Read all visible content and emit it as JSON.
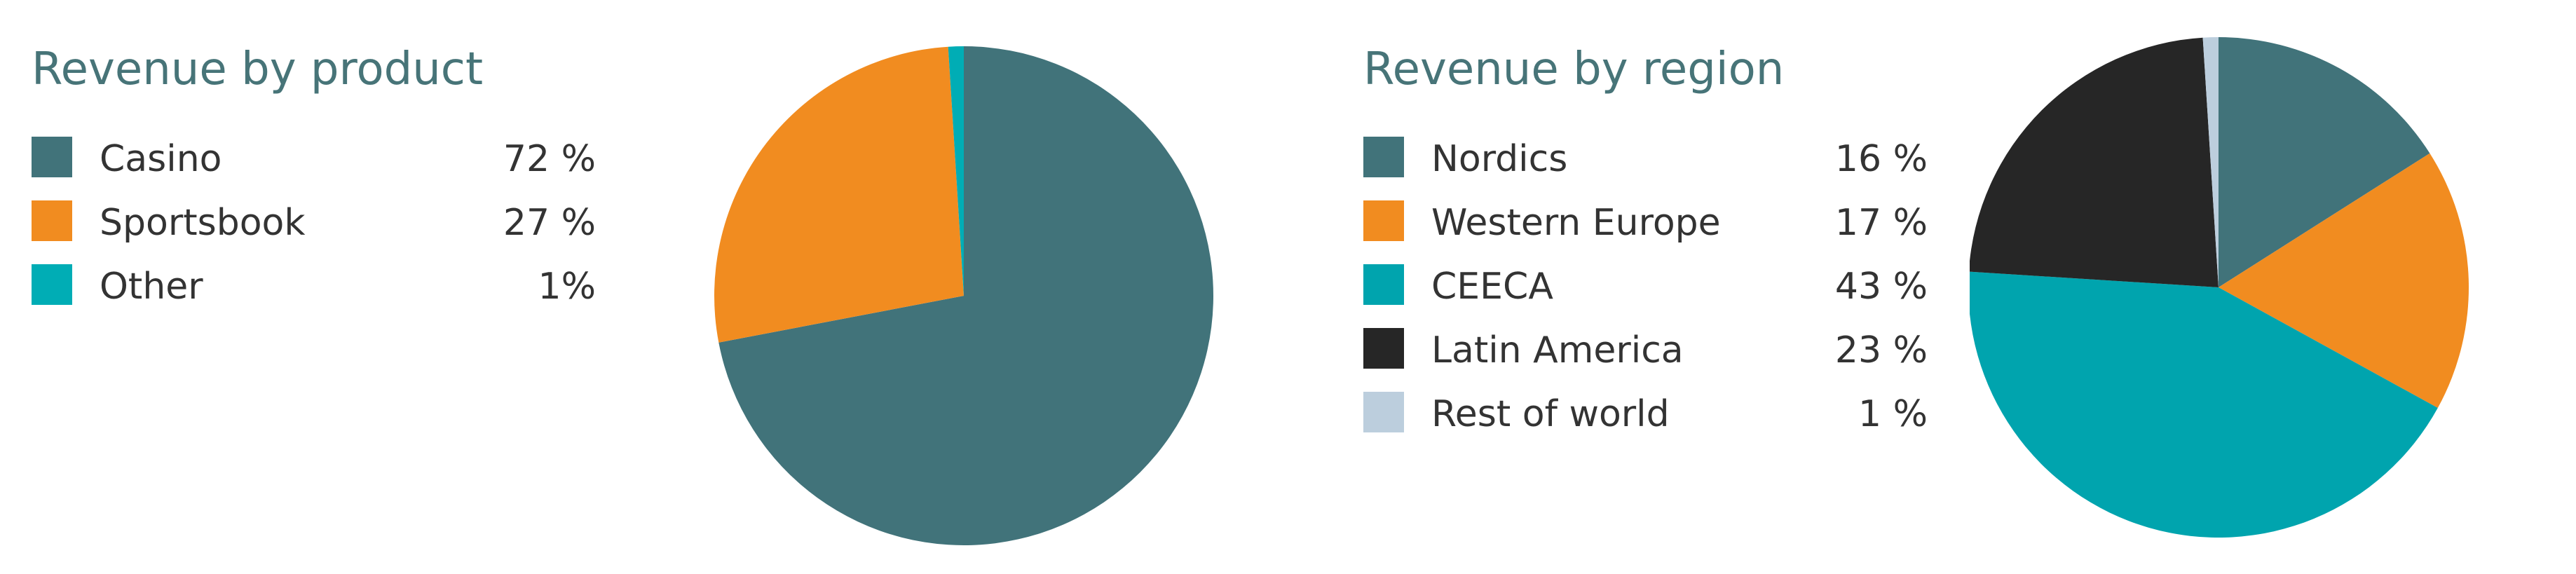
{
  "chart_data": [
    {
      "type": "pie",
      "title": "Revenue by product",
      "slices": [
        {
          "label": "Casino",
          "value": 72,
          "value_label": "72 %",
          "color": "#41737a"
        },
        {
          "label": "Sportsbook",
          "value": 27,
          "value_label": "27 %",
          "color": "#f18c20"
        },
        {
          "label": "Other",
          "value": 1,
          "value_label": "1%",
          "color": "#00adb5"
        }
      ],
      "legend_position": "left"
    },
    {
      "type": "pie",
      "title": "Revenue by region",
      "slices": [
        {
          "label": "Nordics",
          "value": 16,
          "value_label": "16 %",
          "color": "#41737a"
        },
        {
          "label": "Western Europe",
          "value": 17,
          "value_label": "17 %",
          "color": "#f18c20"
        },
        {
          "label": "CEECA",
          "value": 43,
          "value_label": "43 %",
          "color": "#00a4ae"
        },
        {
          "label": "Latin America",
          "value": 23,
          "value_label": "23 %",
          "color": "#262626"
        },
        {
          "label": "Rest of world",
          "value": 1,
          "value_label": "1 %",
          "color": "#bccedd"
        }
      ],
      "legend_position": "left"
    }
  ]
}
